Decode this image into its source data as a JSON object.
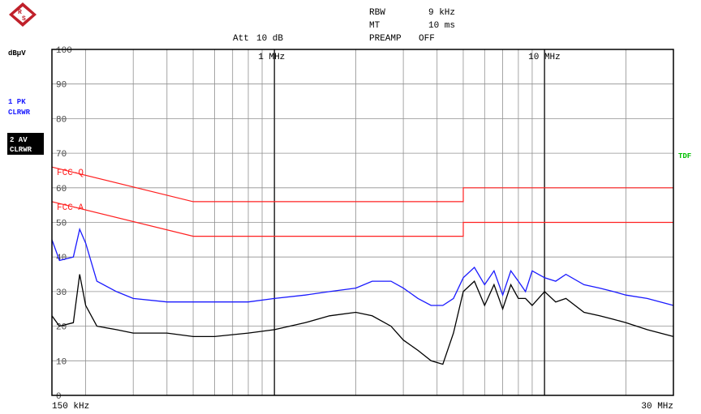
{
  "header": {
    "rbw_label": "RBW",
    "rbw_value": "9 kHz",
    "mt_label": "MT",
    "mt_value": "10 ms",
    "att_label": "Att",
    "att_value": "10 dB",
    "preamp_label": "PREAMP",
    "preamp_value": "OFF"
  },
  "side": {
    "unit": "dBµV",
    "trace1_line1": "1 PK",
    "trace1_line2": "CLRWR",
    "trace2_line1": "2 AV",
    "trace2_line2": "CLRWR",
    "tdf": "TDF"
  },
  "colors": {
    "trace_pk": "#1a1aff",
    "trace_av": "#000000",
    "limit": "#ff2020",
    "tdf": "#00c000",
    "grid": "#909090",
    "logo": "#c0202a"
  },
  "chart_data": {
    "type": "line",
    "x_scale": "log",
    "y_unit": "dBµV",
    "ylim": [
      0,
      100
    ],
    "xlim_mhz": [
      0.15,
      30
    ],
    "y_ticks": [
      {
        "v": 100,
        "label": "100"
      },
      {
        "v": 90,
        "label": "90"
      },
      {
        "v": 80,
        "label": "80"
      },
      {
        "v": 70,
        "label": "70"
      },
      {
        "v": 60,
        "label": "60"
      },
      {
        "v": 50,
        "label": "50"
      },
      {
        "v": 40,
        "label": "40"
      },
      {
        "v": 30,
        "label": "30"
      },
      {
        "v": 20,
        "label": "20"
      },
      {
        "v": 10,
        "label": "10"
      },
      {
        "v": 0,
        "label": "0"
      }
    ],
    "x_labels": [
      {
        "mhz": 1,
        "label": "1 MHz",
        "pos": "top"
      },
      {
        "mhz": 10,
        "label": "10 MHz",
        "pos": "top"
      },
      {
        "mhz": 0.15,
        "label": "150 kHz",
        "pos": "bottom"
      },
      {
        "mhz": 30,
        "label": "30 MHz",
        "pos": "bottom"
      }
    ],
    "limit_lines": [
      {
        "name": "FCC-Q",
        "points": [
          [
            0.15,
            66
          ],
          [
            0.5,
            56
          ],
          [
            5,
            56
          ],
          [
            5,
            60
          ],
          [
            30,
            60
          ]
        ]
      },
      {
        "name": "FCC-A",
        "points": [
          [
            0.15,
            56
          ],
          [
            0.5,
            46
          ],
          [
            5,
            46
          ],
          [
            5,
            50
          ],
          [
            30,
            50
          ]
        ]
      }
    ],
    "series": [
      {
        "name": "1 PK",
        "points": [
          [
            0.15,
            45
          ],
          [
            0.16,
            39
          ],
          [
            0.18,
            40
          ],
          [
            0.19,
            48
          ],
          [
            0.2,
            44
          ],
          [
            0.22,
            33
          ],
          [
            0.26,
            30
          ],
          [
            0.3,
            28
          ],
          [
            0.4,
            27
          ],
          [
            0.5,
            27
          ],
          [
            0.6,
            27
          ],
          [
            0.8,
            27
          ],
          [
            1,
            28
          ],
          [
            1.3,
            29
          ],
          [
            1.6,
            30
          ],
          [
            2,
            31
          ],
          [
            2.3,
            33
          ],
          [
            2.7,
            33
          ],
          [
            3,
            31
          ],
          [
            3.4,
            28
          ],
          [
            3.8,
            26
          ],
          [
            4.2,
            26
          ],
          [
            4.6,
            28
          ],
          [
            5,
            34
          ],
          [
            5.5,
            37
          ],
          [
            6,
            32
          ],
          [
            6.5,
            36
          ],
          [
            7,
            29
          ],
          [
            7.5,
            36
          ],
          [
            8,
            33
          ],
          [
            8.5,
            30
          ],
          [
            9,
            36
          ],
          [
            10,
            34
          ],
          [
            11,
            33
          ],
          [
            12,
            35
          ],
          [
            14,
            32
          ],
          [
            16,
            31
          ],
          [
            18,
            30
          ],
          [
            20,
            29
          ],
          [
            24,
            28
          ],
          [
            30,
            26
          ]
        ]
      },
      {
        "name": "2 AV",
        "points": [
          [
            0.15,
            23
          ],
          [
            0.16,
            20
          ],
          [
            0.18,
            21
          ],
          [
            0.19,
            35
          ],
          [
            0.2,
            26
          ],
          [
            0.22,
            20
          ],
          [
            0.26,
            19
          ],
          [
            0.3,
            18
          ],
          [
            0.4,
            18
          ],
          [
            0.5,
            17
          ],
          [
            0.6,
            17
          ],
          [
            0.8,
            18
          ],
          [
            1,
            19
          ],
          [
            1.3,
            21
          ],
          [
            1.6,
            23
          ],
          [
            2,
            24
          ],
          [
            2.3,
            23
          ],
          [
            2.7,
            20
          ],
          [
            3,
            16
          ],
          [
            3.4,
            13
          ],
          [
            3.8,
            10
          ],
          [
            4.2,
            9
          ],
          [
            4.6,
            18
          ],
          [
            5,
            30
          ],
          [
            5.5,
            33
          ],
          [
            6,
            26
          ],
          [
            6.5,
            32
          ],
          [
            7,
            25
          ],
          [
            7.5,
            32
          ],
          [
            8,
            28
          ],
          [
            8.5,
            28
          ],
          [
            9,
            26
          ],
          [
            10,
            30
          ],
          [
            11,
            27
          ],
          [
            12,
            28
          ],
          [
            14,
            24
          ],
          [
            16,
            23
          ],
          [
            18,
            22
          ],
          [
            20,
            21
          ],
          [
            24,
            19
          ],
          [
            30,
            17
          ]
        ]
      }
    ]
  }
}
